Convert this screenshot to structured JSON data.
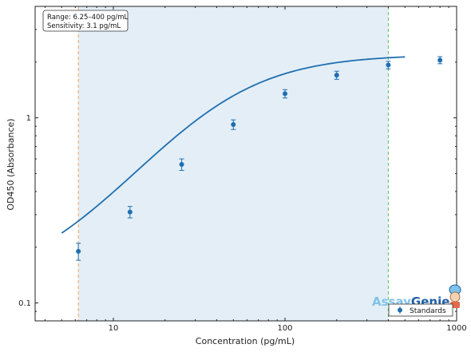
{
  "chart_data": {
    "type": "scatter",
    "xlabel": "Concentration (pg/mL)",
    "ylabel": "OD450 (Absorbance)",
    "x_scale": "log",
    "y_scale": "log",
    "xlim": [
      3.5,
      1000
    ],
    "ylim": [
      0.08,
      4.0
    ],
    "x_ticks": [
      {
        "value": 10,
        "label": "10"
      },
      {
        "value": 100,
        "label": "100"
      },
      {
        "value": 1000,
        "label": "1000"
      }
    ],
    "y_ticks": [
      {
        "value": 0.1,
        "label": "0.1"
      },
      {
        "value": 1,
        "label": "1"
      }
    ],
    "grid": false,
    "series": [
      {
        "name": "Standards",
        "color": "#1f6fb0",
        "points": [
          {
            "x": 6.25,
            "y": 0.19,
            "err": 0.02
          },
          {
            "x": 12.5,
            "y": 0.31,
            "err": 0.022
          },
          {
            "x": 25,
            "y": 0.56,
            "err": 0.04
          },
          {
            "x": 50,
            "y": 0.92,
            "err": 0.055
          },
          {
            "x": 100,
            "y": 1.35,
            "err": 0.07
          },
          {
            "x": 200,
            "y": 1.7,
            "err": 0.085
          },
          {
            "x": 400,
            "y": 1.93,
            "err": 0.09
          },
          {
            "x": 800,
            "y": 2.05,
            "err": 0.09
          }
        ]
      }
    ],
    "fit_curve": {
      "model": "4PL",
      "color": "#1f6fb0",
      "x_range": [
        5,
        500
      ],
      "params": {
        "bottom": 0.12,
        "top": 2.2,
        "ec50": 40,
        "hill": 1.35
      }
    },
    "range_band": {
      "x_start": 6.25,
      "x_end": 400,
      "color": "#e4eef6"
    },
    "vlines": [
      {
        "x": 6.25,
        "color": "#f3a25a"
      },
      {
        "x": 400,
        "color": "#5cc06a"
      }
    ],
    "info_box": {
      "line1": "Range: 6.25–400 pg/mL",
      "line2": "Sensitivity: 3.1 pg/mL"
    },
    "legend": {
      "position": "bottom-right",
      "entries": [
        "Standards"
      ]
    }
  },
  "brand": {
    "part1": "Assay",
    "part2": "Genie"
  }
}
